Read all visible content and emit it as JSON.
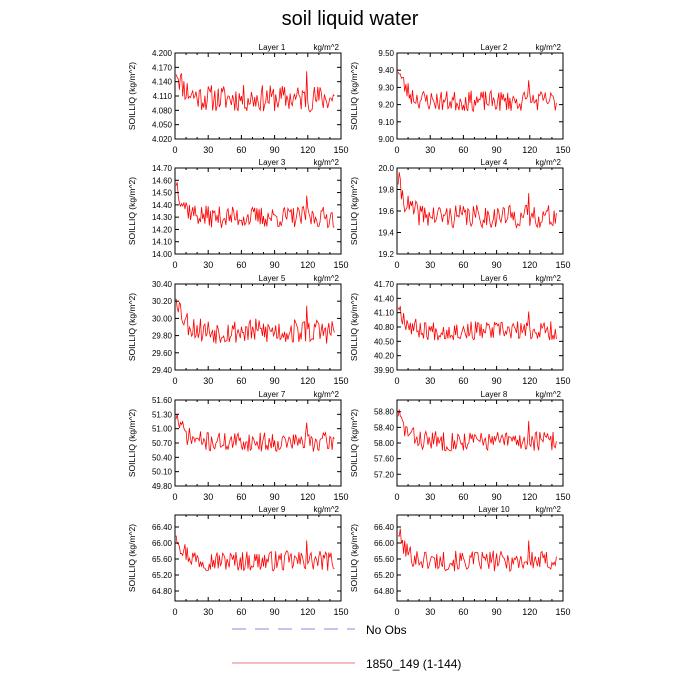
{
  "page": {
    "title": "soil liquid water"
  },
  "legend": [
    {
      "label": "No Obs",
      "color": "#8a8ad8",
      "style": "dashed"
    },
    {
      "label": "1850_149 (1-144)",
      "color": "#e87a7a",
      "style": "solid"
    }
  ],
  "chart_data": [
    {
      "type": "line",
      "title": "Layer 1",
      "units": "kg/m^2",
      "ylabel": "SOILLIQ  (kg/m^2)",
      "xlim": [
        0,
        150
      ],
      "x_ticks": [
        0,
        30,
        60,
        90,
        120,
        150
      ],
      "ylim": [
        4.02,
        4.2
      ],
      "y_ticks": [
        "4.020",
        "4.050",
        "4.080",
        "4.110",
        "4.140",
        "4.170",
        "4.200"
      ],
      "series": [
        {
          "color": "#ff0000",
          "n": 144,
          "start": 4.17,
          "base": 4.105,
          "decay": 0.065,
          "amp": 0.042,
          "seed": 11
        }
      ]
    },
    {
      "type": "line",
      "title": "Layer 2",
      "units": "kg/m^2",
      "ylabel": "SOILLIQ  (kg/m^2)",
      "xlim": [
        0,
        150
      ],
      "x_ticks": [
        0,
        30,
        60,
        90,
        120,
        150
      ],
      "ylim": [
        9.0,
        9.5
      ],
      "y_ticks": [
        "9.00",
        "9.10",
        "9.20",
        "9.30",
        "9.40",
        "9.50"
      ],
      "series": [
        {
          "color": "#ff0000",
          "n": 144,
          "start": 9.42,
          "base": 9.22,
          "decay": 0.2,
          "amp": 0.09,
          "seed": 23
        }
      ]
    },
    {
      "type": "line",
      "title": "Layer 3",
      "units": "kg/m^2",
      "ylabel": "SOILLIQ  (kg/m^2)",
      "xlim": [
        0,
        150
      ],
      "x_ticks": [
        0,
        30,
        60,
        90,
        120,
        150
      ],
      "ylim": [
        14.0,
        14.7
      ],
      "y_ticks": [
        "14.00",
        "14.10",
        "14.20",
        "14.30",
        "14.40",
        "14.50",
        "14.60",
        "14.70"
      ],
      "series": [
        {
          "color": "#ff0000",
          "n": 144,
          "start": 14.6,
          "base": 14.3,
          "decay": 0.3,
          "amp": 0.13,
          "seed": 37
        }
      ]
    },
    {
      "type": "line",
      "title": "Layer 4",
      "units": "kg/m^2",
      "ylabel": "SOILLIQ  (kg/m^2)",
      "xlim": [
        0,
        150
      ],
      "x_ticks": [
        0,
        30,
        60,
        90,
        120,
        150
      ],
      "ylim": [
        19.2,
        20.0
      ],
      "y_ticks": [
        "19.2",
        "19.4",
        "19.6",
        "19.8",
        "20.0"
      ],
      "series": [
        {
          "color": "#ff0000",
          "n": 144,
          "start": 19.9,
          "base": 19.55,
          "decay": 0.35,
          "amp": 0.16,
          "seed": 41
        }
      ]
    },
    {
      "type": "line",
      "title": "Layer 5",
      "units": "kg/m^2",
      "ylabel": "SOILLIQ  (kg/m^2)",
      "xlim": [
        0,
        150
      ],
      "x_ticks": [
        0,
        30,
        60,
        90,
        120,
        150
      ],
      "ylim": [
        29.4,
        30.4
      ],
      "y_ticks": [
        "29.40",
        "29.60",
        "29.80",
        "30.00",
        "30.20",
        "30.40"
      ],
      "series": [
        {
          "color": "#ff0000",
          "n": 144,
          "start": 30.3,
          "base": 29.85,
          "decay": 0.45,
          "amp": 0.22,
          "seed": 53
        }
      ]
    },
    {
      "type": "line",
      "title": "Layer 6",
      "units": "kg/m^2",
      "ylabel": "SOILLIQ  (kg/m^2)",
      "xlim": [
        0,
        150
      ],
      "x_ticks": [
        0,
        30,
        60,
        90,
        120,
        150
      ],
      "ylim": [
        39.9,
        41.7
      ],
      "y_ticks": [
        "39.90",
        "40.20",
        "40.50",
        "40.80",
        "41.10",
        "41.40",
        "41.70"
      ],
      "series": [
        {
          "color": "#ff0000",
          "n": 144,
          "start": 41.3,
          "base": 40.72,
          "decay": 0.55,
          "amp": 0.3,
          "seed": 67
        }
      ]
    },
    {
      "type": "line",
      "title": "Layer 7",
      "units": "kg/m^2",
      "ylabel": "SOILLIQ  (kg/m^2)",
      "xlim": [
        0,
        150
      ],
      "x_ticks": [
        0,
        30,
        60,
        90,
        120,
        150
      ],
      "ylim": [
        49.8,
        51.6
      ],
      "y_ticks": [
        "49.80",
        "50.10",
        "50.40",
        "50.70",
        "51.00",
        "51.30",
        "51.60"
      ],
      "series": [
        {
          "color": "#ff0000",
          "n": 144,
          "start": 51.3,
          "base": 50.72,
          "decay": 0.55,
          "amp": 0.3,
          "seed": 71
        }
      ]
    },
    {
      "type": "line",
      "title": "Layer 8",
      "units": "kg/m^2",
      "ylabel": "SOILLIQ  (kg/m^2)",
      "xlim": [
        0,
        150
      ],
      "x_ticks": [
        0,
        30,
        60,
        90,
        120,
        150
      ],
      "ylim": [
        56.9,
        59.1
      ],
      "y_ticks": [
        "57.20",
        "57.60",
        "58.00",
        "58.40",
        "58.80"
      ],
      "series": [
        {
          "color": "#ff0000",
          "n": 144,
          "start": 58.8,
          "base": 58.05,
          "decay": 0.65,
          "amp": 0.38,
          "seed": 83
        }
      ]
    },
    {
      "type": "line",
      "title": "Layer 9",
      "units": "kg/m^2",
      "ylabel": "SOILLIQ  (kg/m^2)",
      "xlim": [
        0,
        150
      ],
      "x_ticks": [
        0,
        30,
        60,
        90,
        120,
        150
      ],
      "ylim": [
        64.55,
        66.7
      ],
      "y_ticks": [
        "64.80",
        "65.20",
        "65.60",
        "66.00",
        "66.40"
      ],
      "series": [
        {
          "color": "#ff0000",
          "n": 144,
          "start": 66.3,
          "base": 65.55,
          "decay": 0.65,
          "amp": 0.38,
          "seed": 97
        }
      ]
    },
    {
      "type": "line",
      "title": "Layer 10",
      "units": "kg/m^2",
      "ylabel": "SOILLIQ  (kg/m^2)",
      "xlim": [
        0,
        150
      ],
      "x_ticks": [
        0,
        30,
        60,
        90,
        120,
        150
      ],
      "ylim": [
        64.55,
        66.7
      ],
      "y_ticks": [
        "64.80",
        "65.20",
        "65.60",
        "66.00",
        "66.40"
      ],
      "series": [
        {
          "color": "#ff0000",
          "n": 144,
          "start": 66.3,
          "base": 65.55,
          "decay": 0.65,
          "amp": 0.38,
          "seed": 101
        }
      ]
    }
  ]
}
